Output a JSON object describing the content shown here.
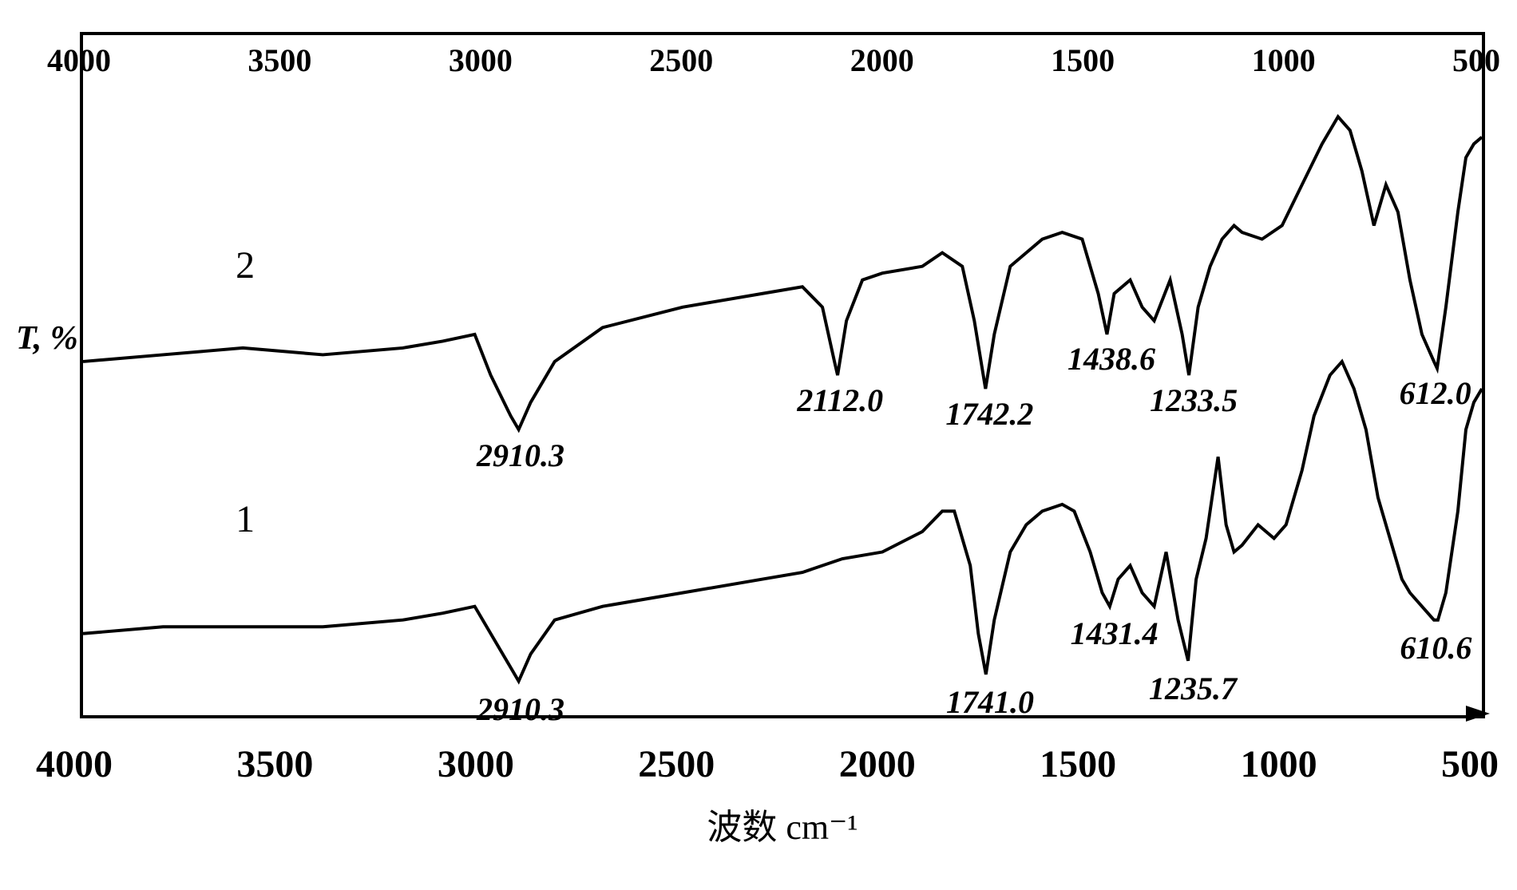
{
  "chart": {
    "type": "ir-spectrum",
    "background_color": "#ffffff",
    "border_color": "#000000",
    "border_width": 4,
    "line_color": "#000000",
    "line_width": 4,
    "ylabel": "T, %",
    "ylabel_fontsize": 42,
    "xlabel": "波数 cm⁻¹",
    "xlabel_fontsize": 44,
    "xlim": [
      4000,
      500
    ],
    "x_direction": "decreasing",
    "x_ticks_top": [
      4000,
      3500,
      3000,
      2500,
      2000,
      1500,
      1000,
      500
    ],
    "x_ticks_bottom": [
      4000,
      3500,
      3000,
      2500,
      2000,
      1500,
      1000,
      500
    ],
    "tick_fontsize": 48,
    "peak_label_fontsize": 40,
    "series_label_fontsize": 48,
    "series": [
      {
        "name": "2",
        "label_x_cm": 3600,
        "label_y_pct": 35,
        "y_offset_pct": 0,
        "peaks": [
          {
            "wavenumber": 2910.3,
            "label": "2910.3",
            "depth": 18
          },
          {
            "wavenumber": 2112.0,
            "label": "2112.0",
            "depth": 20
          },
          {
            "wavenumber": 1742.2,
            "label": "1742.2",
            "depth": 28
          },
          {
            "wavenumber": 1438.6,
            "label": "1438.6",
            "depth": 12
          },
          {
            "wavenumber": 1233.5,
            "label": "1233.5",
            "depth": 22
          },
          {
            "wavenumber": 612.0,
            "label": "612.0",
            "depth": 25
          }
        ],
        "points": [
          [
            4000,
            48
          ],
          [
            3800,
            47
          ],
          [
            3600,
            46
          ],
          [
            3400,
            47
          ],
          [
            3200,
            46
          ],
          [
            3100,
            45
          ],
          [
            3020,
            44
          ],
          [
            2980,
            50
          ],
          [
            2930,
            56
          ],
          [
            2910,
            58
          ],
          [
            2880,
            54
          ],
          [
            2820,
            48
          ],
          [
            2700,
            43
          ],
          [
            2500,
            40
          ],
          [
            2300,
            38
          ],
          [
            2200,
            37
          ],
          [
            2150,
            40
          ],
          [
            2120,
            48
          ],
          [
            2112,
            50
          ],
          [
            2090,
            42
          ],
          [
            2050,
            36
          ],
          [
            2000,
            35
          ],
          [
            1900,
            34
          ],
          [
            1850,
            32
          ],
          [
            1800,
            34
          ],
          [
            1770,
            42
          ],
          [
            1742,
            52
          ],
          [
            1720,
            44
          ],
          [
            1680,
            34
          ],
          [
            1600,
            30
          ],
          [
            1550,
            29
          ],
          [
            1500,
            30
          ],
          [
            1460,
            38
          ],
          [
            1438,
            44
          ],
          [
            1420,
            38
          ],
          [
            1380,
            36
          ],
          [
            1350,
            40
          ],
          [
            1320,
            42
          ],
          [
            1280,
            36
          ],
          [
            1250,
            44
          ],
          [
            1233,
            50
          ],
          [
            1210,
            40
          ],
          [
            1180,
            34
          ],
          [
            1150,
            30
          ],
          [
            1120,
            28
          ],
          [
            1100,
            29
          ],
          [
            1050,
            30
          ],
          [
            1000,
            28
          ],
          [
            950,
            22
          ],
          [
            900,
            16
          ],
          [
            860,
            12
          ],
          [
            830,
            14
          ],
          [
            800,
            20
          ],
          [
            770,
            28
          ],
          [
            740,
            22
          ],
          [
            710,
            26
          ],
          [
            680,
            36
          ],
          [
            650,
            44
          ],
          [
            620,
            48
          ],
          [
            612,
            49
          ],
          [
            590,
            40
          ],
          [
            560,
            26
          ],
          [
            540,
            18
          ],
          [
            520,
            16
          ],
          [
            500,
            15
          ]
        ]
      },
      {
        "name": "1",
        "label_x_cm": 3600,
        "label_y_pct": 72,
        "y_offset_pct": 40,
        "peaks": [
          {
            "wavenumber": 2910.3,
            "label": "2910.3",
            "depth": 18
          },
          {
            "wavenumber": 1741.0,
            "label": "1741.0",
            "depth": 30
          },
          {
            "wavenumber": 1431.4,
            "label": "1431.4",
            "depth": 12
          },
          {
            "wavenumber": 1235.7,
            "label": "1235.7",
            "depth": 24
          },
          {
            "wavenumber": 610.6,
            "label": "610.6",
            "depth": 25
          }
        ],
        "points": [
          [
            4000,
            88
          ],
          [
            3800,
            87
          ],
          [
            3600,
            87
          ],
          [
            3400,
            87
          ],
          [
            3200,
            86
          ],
          [
            3100,
            85
          ],
          [
            3020,
            84
          ],
          [
            2980,
            88
          ],
          [
            2930,
            93
          ],
          [
            2910,
            95
          ],
          [
            2880,
            91
          ],
          [
            2820,
            86
          ],
          [
            2700,
            84
          ],
          [
            2500,
            82
          ],
          [
            2300,
            80
          ],
          [
            2200,
            79
          ],
          [
            2100,
            77
          ],
          [
            2000,
            76
          ],
          [
            1900,
            73
          ],
          [
            1850,
            70
          ],
          [
            1820,
            70
          ],
          [
            1780,
            78
          ],
          [
            1760,
            88
          ],
          [
            1741,
            94
          ],
          [
            1720,
            86
          ],
          [
            1680,
            76
          ],
          [
            1640,
            72
          ],
          [
            1600,
            70
          ],
          [
            1550,
            69
          ],
          [
            1520,
            70
          ],
          [
            1480,
            76
          ],
          [
            1450,
            82
          ],
          [
            1431,
            84
          ],
          [
            1410,
            80
          ],
          [
            1380,
            78
          ],
          [
            1350,
            82
          ],
          [
            1320,
            84
          ],
          [
            1290,
            76
          ],
          [
            1260,
            86
          ],
          [
            1235,
            92
          ],
          [
            1215,
            80
          ],
          [
            1190,
            74
          ],
          [
            1160,
            62
          ],
          [
            1140,
            72
          ],
          [
            1120,
            76
          ],
          [
            1100,
            75
          ],
          [
            1060,
            72
          ],
          [
            1020,
            74
          ],
          [
            990,
            72
          ],
          [
            950,
            64
          ],
          [
            920,
            56
          ],
          [
            880,
            50
          ],
          [
            850,
            48
          ],
          [
            820,
            52
          ],
          [
            790,
            58
          ],
          [
            760,
            68
          ],
          [
            730,
            74
          ],
          [
            700,
            80
          ],
          [
            680,
            82
          ],
          [
            650,
            84
          ],
          [
            620,
            86
          ],
          [
            610,
            86
          ],
          [
            590,
            82
          ],
          [
            560,
            70
          ],
          [
            540,
            58
          ],
          [
            520,
            54
          ],
          [
            500,
            52
          ]
        ]
      }
    ]
  }
}
